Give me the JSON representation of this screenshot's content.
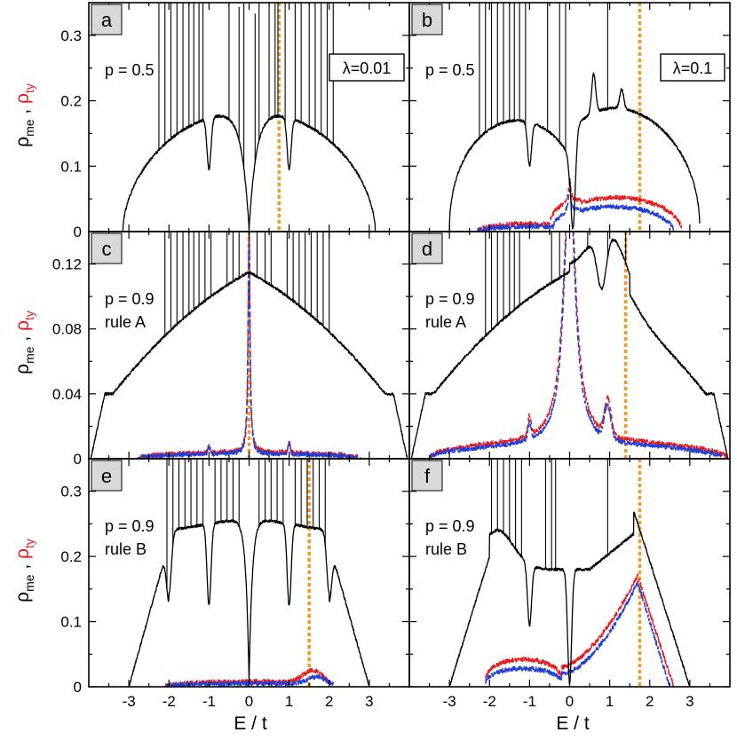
{
  "figure": {
    "ylabel_left": "ρ",
    "ylabel_left_sub": "me",
    "ylabel_sep": " , ",
    "ylabel_right": "ρ",
    "ylabel_right_sub": "ty",
    "xlabel": "E / t",
    "colors": {
      "me": "#000000",
      "ty_red": "#e41a1c",
      "ty_blue": "#1f3fd8",
      "marker": "#f59a1c",
      "panel_label_bg": "#d9d9d9"
    }
  },
  "chart_data": [
    {
      "panel": "a",
      "type": "line",
      "annotations": [
        "p = 0.5"
      ],
      "lambda": "λ=0.01",
      "xlim": [
        -4,
        4
      ],
      "ylim": [
        0,
        0.35
      ],
      "xticks": [
        -3,
        -2,
        -1,
        0,
        1,
        2,
        3
      ],
      "yticks": [
        0,
        0.1,
        0.2,
        0.3
      ],
      "ytick_labels": [
        "0",
        "0.1",
        "0.2",
        "0.3"
      ],
      "marker_E": 0.75,
      "shape": "a",
      "series": [
        {
          "key": "me",
          "style": "solid",
          "range": [
            -3.15,
            3.15
          ]
        }
      ]
    },
    {
      "panel": "b",
      "type": "line",
      "annotations": [
        "p = 0.5"
      ],
      "lambda": "λ=0.1",
      "xlim": [
        -4,
        4
      ],
      "ylim": [
        0,
        0.35
      ],
      "xticks": [
        -3,
        -2,
        -1,
        0,
        1,
        2,
        3
      ],
      "yticks": [
        0,
        0.1,
        0.2,
        0.3
      ],
      "ytick_labels": [],
      "marker_E": 1.75,
      "shape": "b",
      "series": [
        {
          "key": "me",
          "style": "solid",
          "range": [
            -3.0,
            3.25
          ]
        },
        {
          "key": "ty_red",
          "style": "dashed",
          "range": [
            -2.3,
            2.8
          ]
        },
        {
          "key": "ty_blue",
          "style": "dashed",
          "range": [
            -2.3,
            2.6
          ]
        }
      ]
    },
    {
      "panel": "c",
      "type": "line",
      "annotations": [
        "p = 0.9",
        "rule A"
      ],
      "xlim": [
        -4,
        4
      ],
      "ylim": [
        0,
        0.14
      ],
      "xticks": [
        -3,
        -2,
        -1,
        0,
        1,
        2,
        3
      ],
      "yticks": [
        0,
        0.04,
        0.08,
        0.12
      ],
      "ytick_labels": [
        "0",
        "0.04",
        "0.08",
        "0.12"
      ],
      "marker_E": 0,
      "shape": "c",
      "series": [
        {
          "key": "me",
          "style": "solid",
          "range": [
            -3.95,
            3.95
          ]
        },
        {
          "key": "ty_red",
          "style": "dashed",
          "range": [
            -2.8,
            2.8
          ]
        },
        {
          "key": "ty_blue",
          "style": "dashed",
          "range": [
            -2.8,
            2.8
          ]
        }
      ]
    },
    {
      "panel": "d",
      "type": "line",
      "annotations": [
        "p = 0.9",
        "rule A"
      ],
      "xlim": [
        -4,
        4
      ],
      "ylim": [
        0,
        0.14
      ],
      "xticks": [
        -3,
        -2,
        -1,
        0,
        1,
        2,
        3
      ],
      "yticks": [
        0,
        0.04,
        0.08,
        0.12
      ],
      "ytick_labels": [],
      "marker_E": 1.4,
      "shape": "d",
      "series": [
        {
          "key": "me",
          "style": "solid",
          "range": [
            -3.95,
            3.95
          ]
        },
        {
          "key": "ty_red",
          "style": "dashed",
          "range": [
            -3.5,
            3.95
          ]
        },
        {
          "key": "ty_blue",
          "style": "dashed",
          "range": [
            -3.5,
            3.8
          ]
        }
      ]
    },
    {
      "panel": "e",
      "type": "line",
      "annotations": [
        "p = 0.9",
        "rule B"
      ],
      "xlim": [
        -4,
        4
      ],
      "ylim": [
        0,
        0.35
      ],
      "xticks": [
        -3,
        -2,
        -1,
        0,
        1,
        2,
        3
      ],
      "xtick_labels": [
        "-3",
        "-2",
        "-1",
        "0",
        "1",
        "2",
        "3"
      ],
      "yticks": [
        0,
        0.1,
        0.2,
        0.3
      ],
      "ytick_labels": [
        "0",
        "0.1",
        "0.2",
        "0.3"
      ],
      "marker_E": 1.5,
      "shape": "e",
      "series": [
        {
          "key": "me",
          "style": "solid",
          "range": [
            -3.0,
            3.0
          ]
        },
        {
          "key": "ty_red",
          "style": "dashed",
          "range": [
            -2.1,
            2.1
          ]
        },
        {
          "key": "ty_blue",
          "style": "dashed",
          "range": [
            -2.1,
            2.1
          ]
        }
      ]
    },
    {
      "panel": "f",
      "type": "line",
      "annotations": [
        "p = 0.9",
        "rule B"
      ],
      "xlim": [
        -4,
        4
      ],
      "ylim": [
        0,
        0.35
      ],
      "xticks": [
        -3,
        -2,
        -1,
        0,
        1,
        2,
        3
      ],
      "xtick_labels": [
        "-3",
        "-2",
        "-1",
        "0",
        "1",
        "2",
        "3"
      ],
      "yticks": [
        0,
        0.1,
        0.2,
        0.3
      ],
      "ytick_labels": [],
      "marker_E": 1.75,
      "shape": "f",
      "series": [
        {
          "key": "me",
          "style": "solid",
          "range": [
            -3.0,
            3.0
          ]
        },
        {
          "key": "ty_red",
          "style": "dashed",
          "range": [
            -2.1,
            2.6
          ]
        },
        {
          "key": "ty_blue",
          "style": "dashed",
          "range": [
            -2.1,
            2.5
          ]
        }
      ]
    }
  ]
}
